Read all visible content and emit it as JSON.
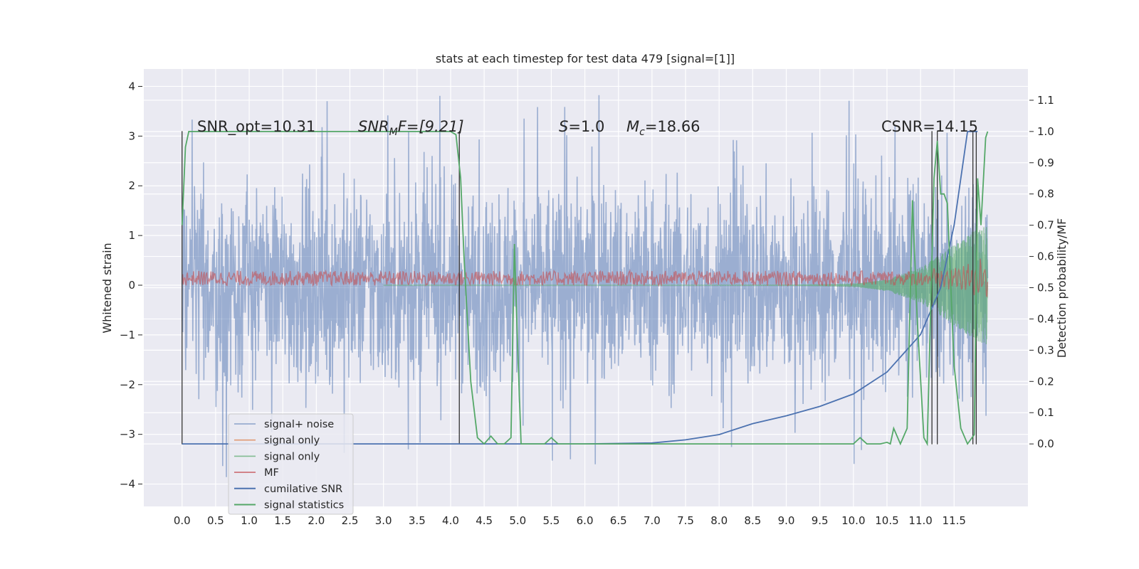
{
  "chart_data": {
    "type": "line",
    "title": "stats at each timestep for test data 479 [signal=[1]]",
    "xlabel": "",
    "ylabel": "Whitened strain",
    "ylabel_right": "Detection probability/MF",
    "xlim": [
      -0.57,
      12.6
    ],
    "ylim": [
      -4.45,
      4.35
    ],
    "ylim_right": [
      -0.2,
      1.2
    ],
    "x_ticks": [
      "0.0",
      "0.5",
      "1.0",
      "1.5",
      "2.0",
      "2.5",
      "3.0",
      "3.5",
      "4.0",
      "4.5",
      "5.0",
      "5.5",
      "6.0",
      "6.5",
      "7.0",
      "7.5",
      "8.0",
      "8.5",
      "9.0",
      "9.5",
      "10.0",
      "10.5",
      "11.0",
      "11.5"
    ],
    "y_ticks": [
      "4",
      "3",
      "2",
      "1",
      "0",
      "−1",
      "−2",
      "−3",
      "−4"
    ],
    "y_ticks_right": [
      "1.1",
      "1.0",
      "0.9",
      "0.8",
      "0.7",
      "0.6",
      "0.5",
      "0.4",
      "0.3",
      "0.2",
      "0.1",
      "0.0"
    ],
    "grid": true,
    "legend_position": "lower left",
    "annotations": {
      "snr_opt": "SNR_opt=10.31",
      "snr_mf_main": "SNR",
      "snr_mf_sub": "M",
      "snr_mf_rest": "F=[9.21]",
      "s_var": "S",
      "s_rest": "=1.0",
      "mc_var": "M",
      "mc_sub": "c",
      "mc_rest": "=18.66",
      "csnr": "CSNR=14.15"
    },
    "series": [
      {
        "name": "signal+ noise",
        "color": "#4c72b0",
        "alpha": 0.5,
        "amplitude_typical": 1.8,
        "amplitude_peak": 3.9
      },
      {
        "name": "signal only",
        "color": "#dd8452",
        "alpha": 0.7
      },
      {
        "name": "signal only",
        "color": "#55a868",
        "alpha": 0.6,
        "envelope": {
          "x": [
            10.0,
            10.5,
            11.0,
            11.3,
            11.6,
            11.8,
            12.0
          ],
          "amp": [
            0.02,
            0.12,
            0.35,
            0.62,
            0.9,
            1.1,
            1.2
          ]
        }
      },
      {
        "name": "MF",
        "color": "#c44e52",
        "alpha": 0.6,
        "band_low": 0.0,
        "band_high": 0.3
      },
      {
        "name": "cumilative SNR",
        "color": "#4c72b0",
        "axis": "right",
        "x": [
          0.0,
          6.0,
          7.0,
          7.5,
          8.0,
          8.5,
          9.0,
          9.5,
          10.0,
          10.5,
          11.0,
          11.3,
          11.5,
          11.6,
          11.7
        ],
        "y": [
          0.0,
          0.0,
          0.003,
          0.013,
          0.03,
          0.065,
          0.09,
          0.12,
          0.16,
          0.23,
          0.35,
          0.5,
          0.7,
          0.85,
          1.0
        ]
      },
      {
        "name": "signal statistics",
        "color": "#55a868",
        "axis": "right",
        "x": [
          0.0,
          0.05,
          0.1,
          0.15,
          0.3,
          1.0,
          2.0,
          3.0,
          4.0,
          4.08,
          4.15,
          4.2,
          4.3,
          4.4,
          4.5,
          4.6,
          4.7,
          4.8,
          4.9,
          4.95,
          5.0,
          5.05,
          5.2,
          5.4,
          5.5,
          5.6,
          6.0,
          8.0,
          10.0,
          10.1,
          10.2,
          10.4,
          10.5,
          10.55,
          10.6,
          10.7,
          10.8,
          10.88,
          10.95,
          11.05,
          11.1,
          11.2,
          11.25,
          11.3,
          11.35,
          11.4,
          11.5,
          11.6,
          11.7,
          11.8,
          11.85,
          11.9,
          11.97,
          12.0
        ],
        "y": [
          0.7,
          0.95,
          1.0,
          1.0,
          1.0,
          1.0,
          1.0,
          1.0,
          1.0,
          0.99,
          0.85,
          0.6,
          0.2,
          0.02,
          0.0,
          0.025,
          0.0,
          0.0,
          0.02,
          0.64,
          0.3,
          0.0,
          0.0,
          0.0,
          0.02,
          0.0,
          0.0,
          0.0,
          0.0,
          0.02,
          0.0,
          0.0,
          0.005,
          0.0,
          0.05,
          0.0,
          0.05,
          0.78,
          0.4,
          0.02,
          0.0,
          0.85,
          0.97,
          0.8,
          0.8,
          0.77,
          0.25,
          0.05,
          0.0,
          0.03,
          0.85,
          0.7,
          0.98,
          1.0
        ]
      }
    ],
    "vertical_markers": [
      {
        "x": 0.0,
        "from": -3.2,
        "to": 3.1
      },
      {
        "x": 4.13,
        "from": -3.2,
        "to": 3.1
      },
      {
        "x": 11.17,
        "from": -3.2,
        "to": 3.1
      },
      {
        "x": 11.25,
        "from": -3.2,
        "to": 3.1
      },
      {
        "x": 11.78,
        "from": -3.2,
        "to": 3.1
      },
      {
        "x": 11.83,
        "from": -3.2,
        "to": 3.1
      }
    ]
  }
}
